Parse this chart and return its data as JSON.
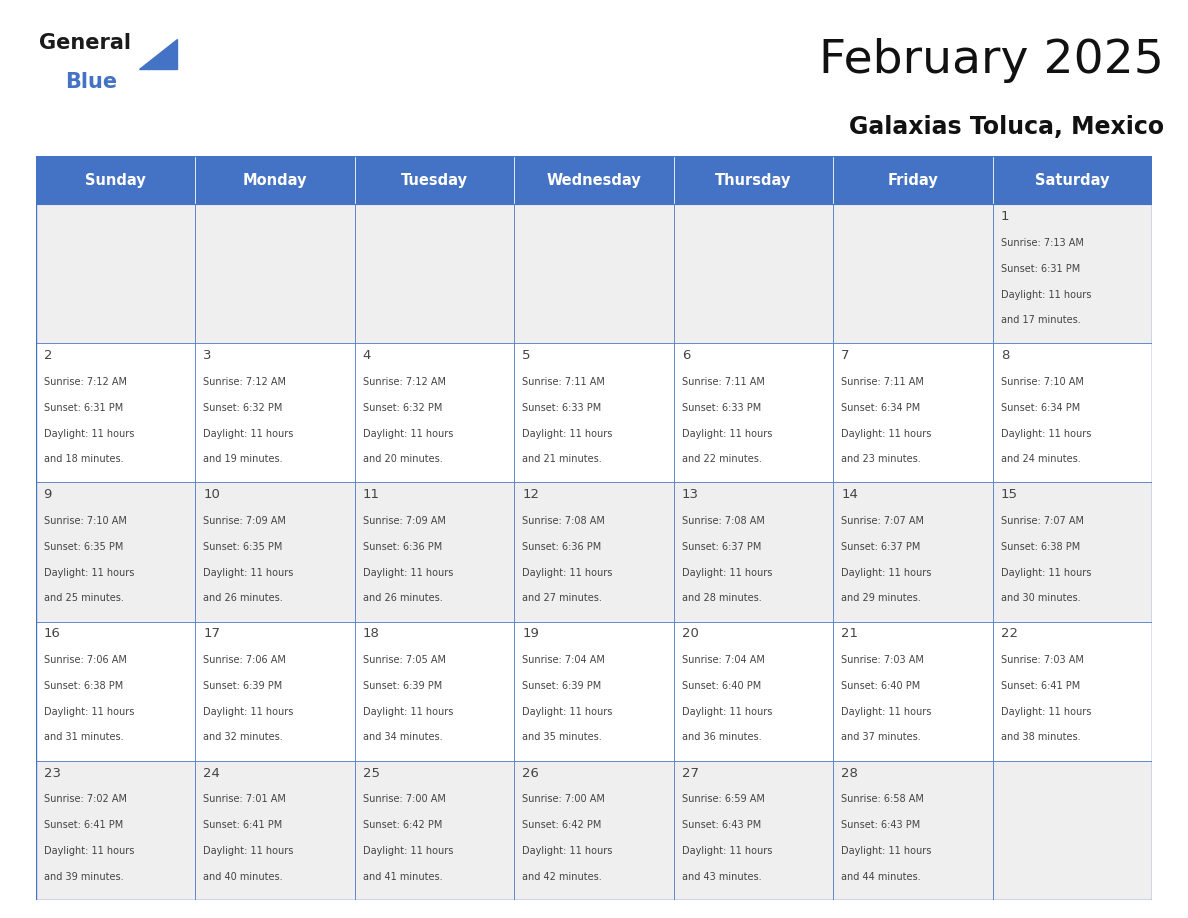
{
  "title": "February 2025",
  "subtitle": "Galaxias Toluca, Mexico",
  "days_of_week": [
    "Sunday",
    "Monday",
    "Tuesday",
    "Wednesday",
    "Thursday",
    "Friday",
    "Saturday"
  ],
  "header_bg": "#4472C4",
  "header_text": "#FFFFFF",
  "cell_bg_odd": "#EFEFEF",
  "cell_bg_even": "#FFFFFF",
  "border_color": "#4472C4",
  "text_color": "#444444",
  "day_num_color": "#2255AA",
  "calendar_data": [
    [
      null,
      null,
      null,
      null,
      null,
      null,
      {
        "day": 1,
        "sunrise": "7:13 AM",
        "sunset": "6:31 PM",
        "daylight_h": "11 hours",
        "daylight_m": "and 17 minutes."
      }
    ],
    [
      {
        "day": 2,
        "sunrise": "7:12 AM",
        "sunset": "6:31 PM",
        "daylight_h": "11 hours",
        "daylight_m": "and 18 minutes."
      },
      {
        "day": 3,
        "sunrise": "7:12 AM",
        "sunset": "6:32 PM",
        "daylight_h": "11 hours",
        "daylight_m": "and 19 minutes."
      },
      {
        "day": 4,
        "sunrise": "7:12 AM",
        "sunset": "6:32 PM",
        "daylight_h": "11 hours",
        "daylight_m": "and 20 minutes."
      },
      {
        "day": 5,
        "sunrise": "7:11 AM",
        "sunset": "6:33 PM",
        "daylight_h": "11 hours",
        "daylight_m": "and 21 minutes."
      },
      {
        "day": 6,
        "sunrise": "7:11 AM",
        "sunset": "6:33 PM",
        "daylight_h": "11 hours",
        "daylight_m": "and 22 minutes."
      },
      {
        "day": 7,
        "sunrise": "7:11 AM",
        "sunset": "6:34 PM",
        "daylight_h": "11 hours",
        "daylight_m": "and 23 minutes."
      },
      {
        "day": 8,
        "sunrise": "7:10 AM",
        "sunset": "6:34 PM",
        "daylight_h": "11 hours",
        "daylight_m": "and 24 minutes."
      }
    ],
    [
      {
        "day": 9,
        "sunrise": "7:10 AM",
        "sunset": "6:35 PM",
        "daylight_h": "11 hours",
        "daylight_m": "and 25 minutes."
      },
      {
        "day": 10,
        "sunrise": "7:09 AM",
        "sunset": "6:35 PM",
        "daylight_h": "11 hours",
        "daylight_m": "and 26 minutes."
      },
      {
        "day": 11,
        "sunrise": "7:09 AM",
        "sunset": "6:36 PM",
        "daylight_h": "11 hours",
        "daylight_m": "and 26 minutes."
      },
      {
        "day": 12,
        "sunrise": "7:08 AM",
        "sunset": "6:36 PM",
        "daylight_h": "11 hours",
        "daylight_m": "and 27 minutes."
      },
      {
        "day": 13,
        "sunrise": "7:08 AM",
        "sunset": "6:37 PM",
        "daylight_h": "11 hours",
        "daylight_m": "and 28 minutes."
      },
      {
        "day": 14,
        "sunrise": "7:07 AM",
        "sunset": "6:37 PM",
        "daylight_h": "11 hours",
        "daylight_m": "and 29 minutes."
      },
      {
        "day": 15,
        "sunrise": "7:07 AM",
        "sunset": "6:38 PM",
        "daylight_h": "11 hours",
        "daylight_m": "and 30 minutes."
      }
    ],
    [
      {
        "day": 16,
        "sunrise": "7:06 AM",
        "sunset": "6:38 PM",
        "daylight_h": "11 hours",
        "daylight_m": "and 31 minutes."
      },
      {
        "day": 17,
        "sunrise": "7:06 AM",
        "sunset": "6:39 PM",
        "daylight_h": "11 hours",
        "daylight_m": "and 32 minutes."
      },
      {
        "day": 18,
        "sunrise": "7:05 AM",
        "sunset": "6:39 PM",
        "daylight_h": "11 hours",
        "daylight_m": "and 34 minutes."
      },
      {
        "day": 19,
        "sunrise": "7:04 AM",
        "sunset": "6:39 PM",
        "daylight_h": "11 hours",
        "daylight_m": "and 35 minutes."
      },
      {
        "day": 20,
        "sunrise": "7:04 AM",
        "sunset": "6:40 PM",
        "daylight_h": "11 hours",
        "daylight_m": "and 36 minutes."
      },
      {
        "day": 21,
        "sunrise": "7:03 AM",
        "sunset": "6:40 PM",
        "daylight_h": "11 hours",
        "daylight_m": "and 37 minutes."
      },
      {
        "day": 22,
        "sunrise": "7:03 AM",
        "sunset": "6:41 PM",
        "daylight_h": "11 hours",
        "daylight_m": "and 38 minutes."
      }
    ],
    [
      {
        "day": 23,
        "sunrise": "7:02 AM",
        "sunset": "6:41 PM",
        "daylight_h": "11 hours",
        "daylight_m": "and 39 minutes."
      },
      {
        "day": 24,
        "sunrise": "7:01 AM",
        "sunset": "6:41 PM",
        "daylight_h": "11 hours",
        "daylight_m": "and 40 minutes."
      },
      {
        "day": 25,
        "sunrise": "7:00 AM",
        "sunset": "6:42 PM",
        "daylight_h": "11 hours",
        "daylight_m": "and 41 minutes."
      },
      {
        "day": 26,
        "sunrise": "7:00 AM",
        "sunset": "6:42 PM",
        "daylight_h": "11 hours",
        "daylight_m": "and 42 minutes."
      },
      {
        "day": 27,
        "sunrise": "6:59 AM",
        "sunset": "6:43 PM",
        "daylight_h": "11 hours",
        "daylight_m": "and 43 minutes."
      },
      {
        "day": 28,
        "sunrise": "6:58 AM",
        "sunset": "6:43 PM",
        "daylight_h": "11 hours",
        "daylight_m": "and 44 minutes."
      },
      null
    ]
  ]
}
